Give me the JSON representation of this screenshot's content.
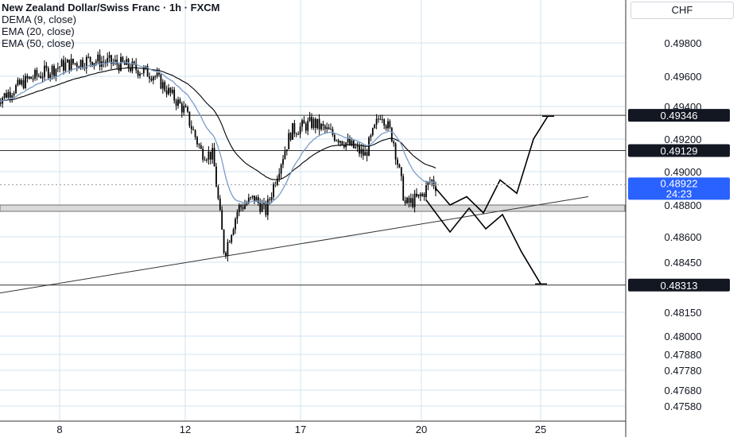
{
  "legend": {
    "title": "New Zealand Dollar/Swiss Franc · 1h · FXCM",
    "lines": [
      "DEMA (9, close)",
      "EMA (20, close)",
      "EMA (50, close)"
    ]
  },
  "currency": "CHF",
  "colors": {
    "candle": "#000000",
    "dema": "#1e222d",
    "ema20": "#7a9cc6",
    "ema50": "#000000",
    "grid": "#d0e3f0",
    "zone": "#d9d9d9",
    "current_price_bg": "#2962ff",
    "level_label_bg": "#131722"
  },
  "chart_data": {
    "type": "candlestick",
    "title": "New Zealand Dollar/Swiss Franc · 1h · FXCM",
    "y_axis_ticks": [
      "0.49800",
      "0.49600",
      "0.49400",
      "0.49200",
      "0.49000",
      "0.48800",
      "0.48600",
      "0.48450",
      "0.48150",
      "0.48000",
      "0.47880",
      "0.47780",
      "0.47680",
      "0.47580"
    ],
    "x_axis_ticks": [
      "8",
      "12",
      "17",
      "20",
      "25"
    ],
    "y_scale": "log",
    "grid": true,
    "horizontal_levels": [
      "0.49346",
      "0.49129",
      "0.48313"
    ],
    "current_price": {
      "value": "0.48922",
      "countdown": "24:23"
    },
    "support_zone": [
      0.4876,
      0.488
    ],
    "trendline": {
      "from": {
        "x": "3",
        "y": 0.4817
      },
      "to": {
        "x": "27",
        "y": 0.4885
      }
    },
    "projected_paths": [
      {
        "name": "bullish",
        "points": [
          [
            20.6,
            0.489
          ],
          [
            21.2,
            0.488
          ],
          [
            21.9,
            0.4885
          ],
          [
            22.6,
            0.4875
          ],
          [
            23.3,
            0.4895
          ],
          [
            24.0,
            0.4887
          ],
          [
            24.7,
            0.492
          ],
          [
            25.3,
            0.4934
          ]
        ]
      },
      {
        "name": "bearish",
        "points": [
          [
            20.2,
            0.4883
          ],
          [
            21.2,
            0.4863
          ],
          [
            22.0,
            0.4878
          ],
          [
            22.7,
            0.4865
          ],
          [
            23.4,
            0.4874
          ],
          [
            24.2,
            0.4851
          ],
          [
            25.0,
            0.4832
          ]
        ]
      }
    ],
    "series_shape": [
      {
        "x": 6.0,
        "y": 0.4944
      },
      {
        "x": 7.0,
        "y": 0.4958
      },
      {
        "x": 8.0,
        "y": 0.4966
      },
      {
        "x": 9.0,
        "y": 0.497
      },
      {
        "x": 10.0,
        "y": 0.4967
      },
      {
        "x": 11.0,
        "y": 0.4961
      },
      {
        "x": 12.0,
        "y": 0.4937
      },
      {
        "x": 12.7,
        "y": 0.4912
      },
      {
        "x": 13.2,
        "y": 0.491
      },
      {
        "x": 13.7,
        "y": 0.485
      },
      {
        "x": 14.3,
        "y": 0.4878
      },
      {
        "x": 15.0,
        "y": 0.4884
      },
      {
        "x": 15.5,
        "y": 0.4876
      },
      {
        "x": 16.0,
        "y": 0.49
      },
      {
        "x": 16.6,
        "y": 0.4925
      },
      {
        "x": 17.3,
        "y": 0.493
      },
      {
        "x": 18.0,
        "y": 0.492
      },
      {
        "x": 18.6,
        "y": 0.491
      },
      {
        "x": 19.0,
        "y": 0.4937
      },
      {
        "x": 19.3,
        "y": 0.492
      },
      {
        "x": 19.6,
        "y": 0.488
      },
      {
        "x": 20.0,
        "y": 0.4885
      },
      {
        "x": 20.4,
        "y": 0.4895
      },
      {
        "x": 20.6,
        "y": 0.4892
      }
    ]
  }
}
